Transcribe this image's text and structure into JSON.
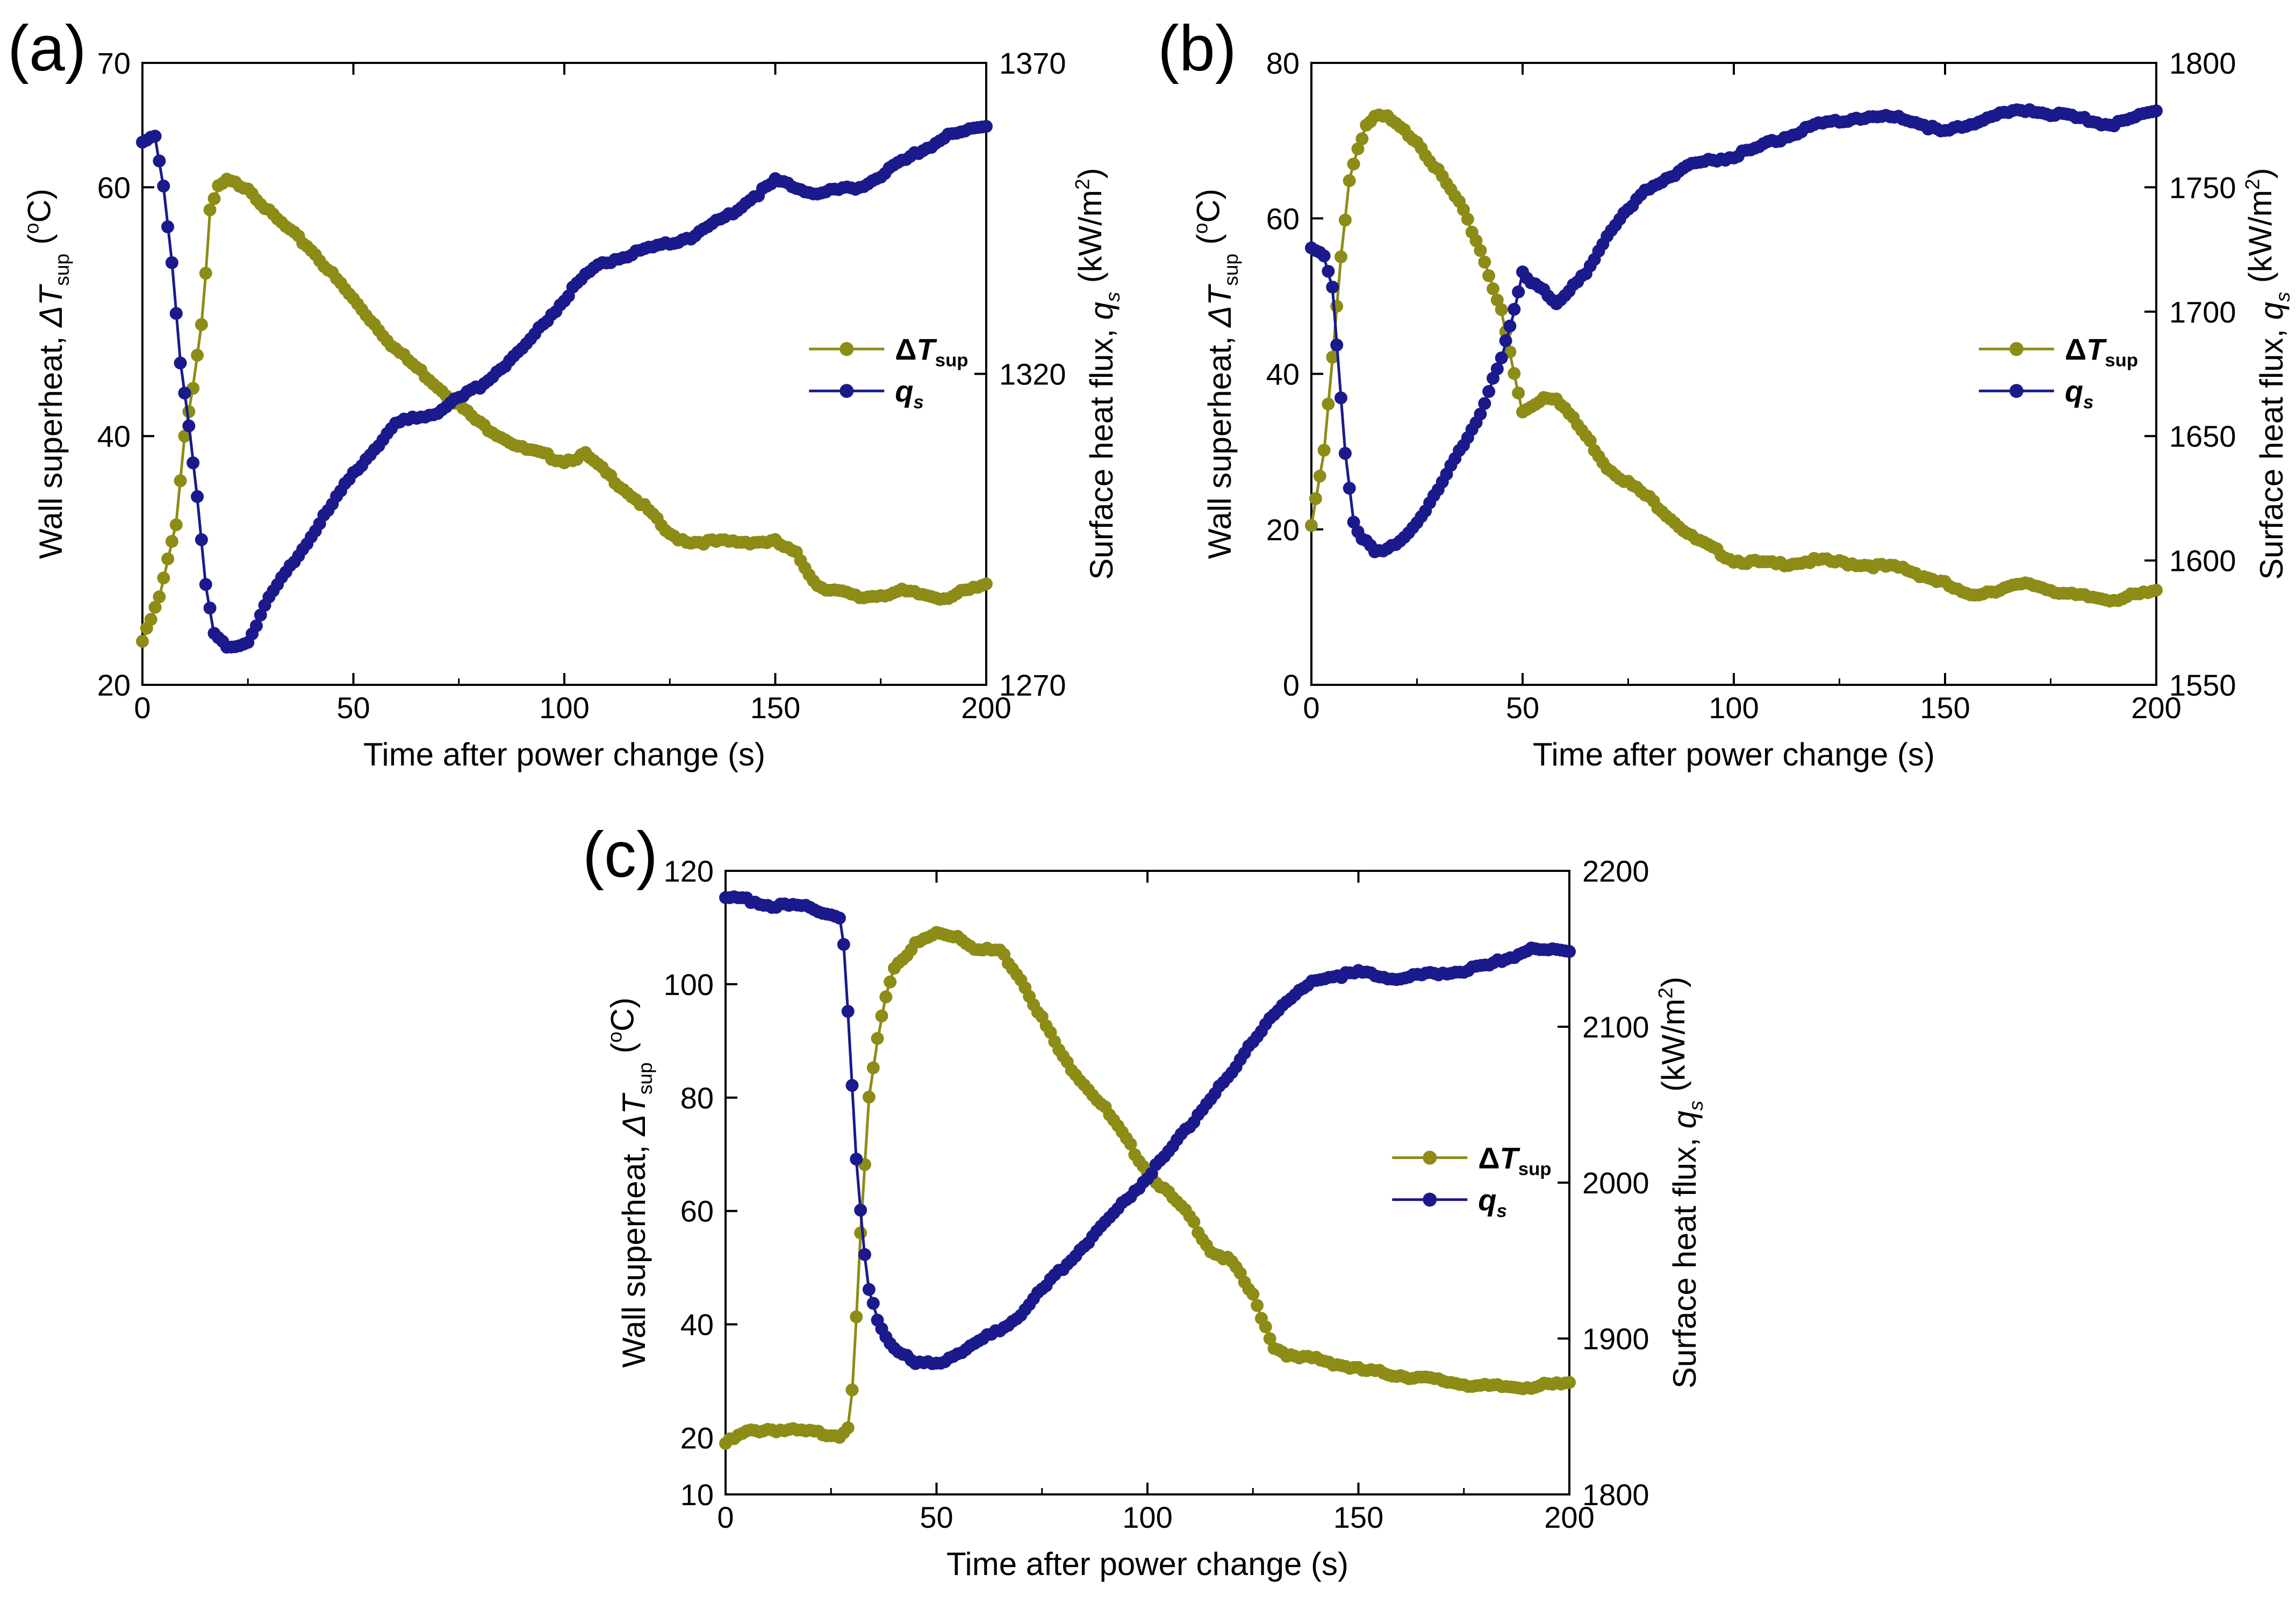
{
  "colors": {
    "superheat": "#8c8c17",
    "heatflux": "#1a1a8c",
    "axis": "#000000"
  },
  "chart_data": [
    {
      "type": "line",
      "panel_label": "(a)",
      "xlabel": "Time after power change (s)",
      "ylabel_left": "Wall superheat, ΔT_sup (°C)",
      "ylabel_right": "Surface heat flux, q_s (kW/m²)",
      "xlim": [
        0,
        200
      ],
      "ylim_left": [
        20,
        70
      ],
      "ylim_right": [
        1270,
        1370
      ],
      "xticks": [
        0,
        50,
        100,
        150,
        200
      ],
      "yticks_left": [
        20,
        40,
        60,
        70
      ],
      "yticks_right": [
        1270,
        1320,
        1370
      ],
      "legend": [
        "ΔT_sup",
        "q_s"
      ],
      "series": [
        {
          "name": "ΔT_sup",
          "axis": "left",
          "x": [
            0,
            4,
            8,
            10,
            12,
            14,
            15,
            16,
            18,
            20,
            25,
            30,
            40,
            50,
            60,
            70,
            80,
            90,
            100,
            105,
            110,
            120,
            125,
            130,
            140,
            150,
            155,
            160,
            170,
            180,
            190,
            200
          ],
          "y": [
            23.5,
            27,
            33,
            40,
            44,
            49,
            53,
            58,
            60,
            60.5,
            60,
            58,
            55,
            51,
            47,
            44,
            41,
            39,
            38,
            38.5,
            37,
            34,
            32,
            31.5,
            31.5,
            31.5,
            30.5,
            28,
            27,
            27.5,
            27,
            28
          ]
        },
        {
          "name": "q_s",
          "axis": "left",
          "x": [
            0,
            3,
            5,
            7,
            9,
            11,
            13,
            15,
            17,
            20,
            25,
            30,
            40,
            50,
            60,
            70,
            80,
            90,
            100,
            105,
            110,
            120,
            130,
            140,
            150,
            155,
            160,
            170,
            180,
            190,
            200
          ],
          "y": [
            63.5,
            64,
            60,
            54,
            46,
            41,
            35,
            28,
            24,
            23,
            23.5,
            27,
            32,
            37,
            41,
            42,
            44,
            47,
            51,
            53,
            54,
            55,
            56,
            58,
            60.5,
            60,
            59.5,
            60,
            62,
            64,
            65
          ]
        }
      ]
    },
    {
      "type": "line",
      "panel_label": "(b)",
      "xlabel": "Time after power change (s)",
      "ylabel_left": "Wall superheat, ΔT_sup (°C)",
      "ylabel_right": "Surface heat flux, q_s (kW/m²)",
      "xlim": [
        0,
        200
      ],
      "ylim_left": [
        0,
        80
      ],
      "ylim_right": [
        1550,
        1800
      ],
      "xticks": [
        0,
        50,
        100,
        150,
        200
      ],
      "yticks_left": [
        0,
        20,
        40,
        60,
        80
      ],
      "yticks_right": [
        1550,
        1600,
        1650,
        1700,
        1750,
        1800
      ],
      "legend": [
        "ΔT_sup",
        "q_s"
      ],
      "series": [
        {
          "name": "ΔT_sup",
          "axis": "left",
          "x": [
            0,
            3,
            5,
            7,
            9,
            11,
            13,
            15,
            18,
            20,
            25,
            30,
            35,
            40,
            45,
            48,
            50,
            55,
            58,
            65,
            70,
            80,
            90,
            100,
            110,
            120,
            130,
            140,
            150,
            155,
            160,
            170,
            180,
            190,
            200
          ],
          "y": [
            20.5,
            30,
            42,
            55,
            65,
            69,
            72,
            73,
            73,
            72,
            70,
            66,
            62,
            56,
            48,
            40,
            35,
            37,
            37,
            32,
            28,
            24,
            19,
            16,
            15.5,
            16,
            15.5,
            15,
            13,
            11.5,
            12,
            13,
            11.5,
            11,
            12
          ]
        },
        {
          "name": "q_s",
          "axis": "left",
          "x": [
            0,
            3,
            5,
            6,
            8,
            10,
            12,
            15,
            17,
            20,
            25,
            30,
            35,
            40,
            45,
            48,
            50,
            52,
            55,
            58,
            60,
            65,
            70,
            80,
            90,
            100,
            110,
            120,
            130,
            140,
            150,
            160,
            170,
            180,
            190,
            200
          ],
          "y": [
            56,
            55,
            51,
            44,
            30,
            21,
            19,
            17,
            17,
            18,
            21,
            25,
            30,
            35,
            42,
            48,
            53,
            52,
            51,
            49,
            50,
            53,
            58,
            64,
            67,
            68,
            70,
            72,
            73,
            73,
            71,
            73,
            74,
            73,
            72,
            74
          ]
        }
      ]
    },
    {
      "type": "line",
      "panel_label": "(c)",
      "xlabel": "Time after power change (s)",
      "ylabel_left": "Wall superheat, ΔT_sup (°C)",
      "ylabel_right": "Surface heat flux, q_s (kW/m²)",
      "xlim": [
        0,
        200
      ],
      "ylim_left": [
        10,
        120
      ],
      "ylim_right": [
        1800,
        2200
      ],
      "xticks": [
        0,
        50,
        100,
        150,
        200
      ],
      "yticks_left": [
        10,
        20,
        40,
        60,
        80,
        100,
        120
      ],
      "yticks_right": [
        1800,
        1900,
        2000,
        2100,
        2200
      ],
      "legend": [
        "ΔT_sup",
        "q_s"
      ],
      "series": [
        {
          "name": "ΔT_sup",
          "axis": "left",
          "x": [
            0,
            5,
            10,
            20,
            27,
            29,
            30,
            31,
            32,
            33,
            34,
            36,
            38,
            40,
            45,
            50,
            55,
            60,
            65,
            70,
            75,
            80,
            90,
            100,
            110,
            115,
            120,
            125,
            130,
            135,
            140,
            150,
            160,
            170,
            180,
            190,
            200
          ],
          "y": [
            19,
            21,
            21.5,
            21,
            20.5,
            22,
            28,
            41,
            56,
            68,
            80,
            90,
            98,
            103,
            107,
            109,
            108.5,
            106,
            106,
            101,
            94,
            87,
            78,
            67,
            59,
            53,
            51,
            45,
            36,
            34,
            34,
            32,
            31,
            30,
            29,
            29,
            29.5
          ]
        },
        {
          "name": "q_s",
          "axis": "left",
          "x": [
            0,
            5,
            10,
            20,
            27,
            28,
            29,
            30,
            31,
            32,
            33,
            34,
            36,
            38,
            40,
            45,
            50,
            55,
            60,
            65,
            70,
            75,
            80,
            90,
            100,
            110,
            115,
            120,
            125,
            130,
            135,
            140,
            150,
            160,
            170,
            180,
            190,
            200
          ],
          "y": [
            115,
            115,
            114,
            113.5,
            112,
            107,
            95,
            82,
            69,
            60,
            52,
            46,
            41,
            38,
            36,
            33,
            33,
            35,
            37,
            39,
            42,
            46,
            50,
            58,
            66,
            75,
            80,
            84,
            90,
            95,
            98,
            101,
            102,
            101,
            102,
            103,
            106,
            106
          ]
        }
      ]
    }
  ]
}
